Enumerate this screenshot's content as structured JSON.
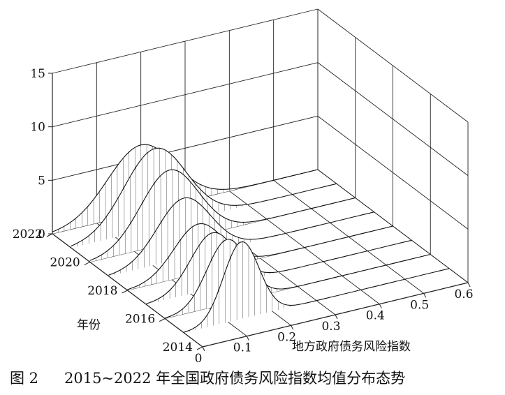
{
  "chart_data": {
    "type": "surface",
    "title": "",
    "xlabel": "地方政府债务风险指数",
    "ylabel": "年份",
    "zlabel": "",
    "xlim": [
      0,
      0.6
    ],
    "ylim": [
      2014,
      2022
    ],
    "zlim": [
      0,
      15
    ],
    "x_ticks": [
      "0",
      "0.1",
      "0.2",
      "0.3",
      "0.4",
      "0.5",
      "0.6"
    ],
    "y_ticks": [
      "2014",
      "2016",
      "2018",
      "2020",
      "2022"
    ],
    "z_ticks": [
      "0",
      "5",
      "10",
      "15"
    ],
    "grid": true,
    "years": [
      2015,
      2016,
      2017,
      2018,
      2019,
      2020,
      2021,
      2022
    ],
    "series": [
      {
        "year": 2015,
        "peak_x": 0.13,
        "peak_density": 7.2,
        "width": 0.04
      },
      {
        "year": 2016,
        "peak_x": 0.14,
        "peak_density": 6.0,
        "width": 0.045
      },
      {
        "year": 2017,
        "peak_x": 0.15,
        "peak_density": 5.2,
        "width": 0.05
      },
      {
        "year": 2018,
        "peak_x": 0.16,
        "peak_density": 4.6,
        "width": 0.055
      },
      {
        "year": 2019,
        "peak_x": 0.17,
        "peak_density": 5.6,
        "width": 0.06
      },
      {
        "year": 2020,
        "peak_x": 0.18,
        "peak_density": 6.8,
        "width": 0.065
      },
      {
        "year": 2021,
        "peak_x": 0.19,
        "peak_density": 7.4,
        "width": 0.07
      },
      {
        "year": 2022,
        "peak_x": 0.2,
        "peak_density": 6.3,
        "width": 0.075
      }
    ]
  },
  "caption": {
    "fig_label": "图 2",
    "text": "2015~2022 年全国政府债务风险指数均值分布态势"
  }
}
